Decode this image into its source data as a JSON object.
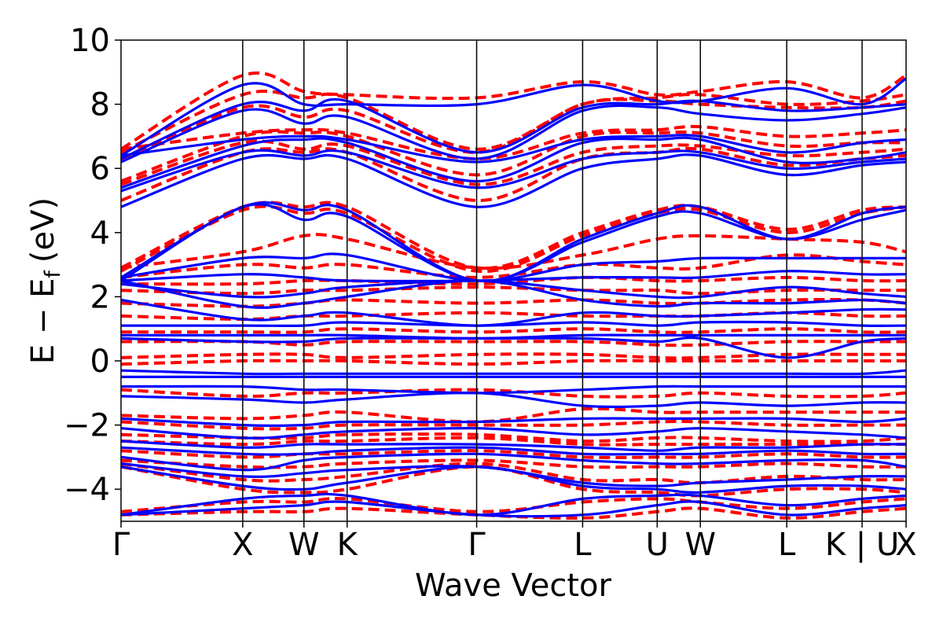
{
  "chart_data": {
    "type": "line",
    "title": "",
    "xlabel": "Wave Vector",
    "ylabel": "E − E",
    "ylabel_subscript": "f",
    "ylabel_unit": "(eV)",
    "ylim": [
      -5,
      10
    ],
    "xlim": [
      0,
      1
    ],
    "yticks": [
      10,
      8,
      6,
      4,
      2,
      0,
      -2,
      -4
    ],
    "ytick_labels": [
      "10",
      "8",
      "6",
      "4",
      "2",
      "0",
      "−2",
      "−4"
    ],
    "kpoints": [
      {
        "label": "Γ",
        "x": 0.0
      },
      {
        "label": "X",
        "x": 0.155
      },
      {
        "label": "W",
        "x": 0.233
      },
      {
        "label": "K",
        "x": 0.288
      },
      {
        "label": "Γ",
        "x": 0.453
      },
      {
        "label": "L",
        "x": 0.588
      },
      {
        "label": "U",
        "x": 0.683
      },
      {
        "label": "W",
        "x": 0.738
      },
      {
        "label": "L",
        "x": 0.848
      },
      {
        "label": "K | U",
        "x": 0.944
      },
      {
        "label": "X",
        "x": 1.0
      }
    ],
    "grid": false,
    "legend": "none",
    "series_styles": [
      {
        "color": "#0000ff",
        "style": "solid"
      },
      {
        "color": "#ff0000",
        "style": "dashed"
      }
    ],
    "bands": {
      "blue_solid": [
        [
          6.4,
          8.6,
          8.0,
          8.0,
          8.0,
          8.6,
          8.1,
          8.1,
          8.5,
          8.0,
          8.8
        ],
        [
          6.3,
          8.0,
          7.8,
          8.1,
          6.5,
          7.9,
          8.0,
          8.1,
          7.8,
          7.9,
          8.0
        ],
        [
          6.2,
          7.8,
          7.4,
          7.6,
          6.3,
          7.8,
          7.9,
          7.7,
          7.5,
          7.7,
          7.9
        ],
        [
          6.4,
          6.9,
          7.0,
          6.9,
          6.2,
          6.9,
          7.0,
          7.0,
          6.5,
          6.8,
          6.9
        ],
        [
          5.4,
          6.7,
          6.9,
          6.8,
          5.6,
          6.8,
          6.9,
          6.9,
          6.2,
          6.3,
          6.5
        ],
        [
          5.3,
          6.5,
          6.4,
          6.5,
          5.4,
          6.3,
          6.5,
          6.5,
          6.0,
          6.2,
          6.3
        ],
        [
          4.8,
          6.3,
          6.3,
          6.3,
          4.8,
          6.0,
          6.3,
          6.4,
          5.8,
          6.1,
          6.2
        ],
        [
          2.6,
          4.8,
          4.7,
          4.7,
          2.5,
          3.8,
          4.6,
          4.8,
          3.8,
          4.6,
          4.8
        ],
        [
          2.5,
          4.8,
          4.4,
          4.5,
          2.5,
          3.7,
          4.5,
          4.6,
          3.8,
          4.4,
          4.7
        ],
        [
          2.6,
          3.2,
          3.2,
          3.3,
          2.5,
          3.0,
          3.1,
          3.2,
          3.2,
          3.2,
          3.2
        ],
        [
          2.5,
          2.7,
          2.6,
          2.5,
          2.5,
          2.6,
          2.6,
          2.6,
          2.8,
          2.7,
          2.7
        ],
        [
          2.4,
          2.0,
          2.1,
          2.3,
          2.5,
          2.2,
          2.0,
          2.0,
          2.3,
          2.1,
          2.0
        ],
        [
          2.5,
          1.7,
          1.8,
          2.0,
          2.5,
          1.9,
          1.7,
          1.8,
          1.8,
          1.9,
          1.8
        ],
        [
          1.9,
          1.3,
          1.4,
          1.5,
          1.1,
          1.5,
          1.4,
          1.4,
          1.5,
          1.6,
          1.6
        ],
        [
          1.1,
          1.1,
          1.1,
          1.2,
          1.1,
          1.2,
          1.1,
          1.2,
          1.2,
          1.1,
          1.1
        ],
        [
          0.8,
          0.8,
          0.8,
          0.8,
          0.7,
          0.8,
          0.8,
          0.8,
          0.8,
          0.8,
          0.8
        ],
        [
          0.7,
          0.6,
          0.6,
          0.7,
          0.7,
          0.7,
          0.6,
          0.7,
          0.1,
          0.6,
          0.7
        ],
        [
          -0.3,
          -0.4,
          -0.4,
          -0.4,
          -0.4,
          -0.4,
          -0.4,
          -0.4,
          -0.4,
          -0.4,
          -0.3
        ],
        [
          -0.5,
          -0.5,
          -0.5,
          -0.5,
          -0.5,
          -0.5,
          -0.5,
          -0.5,
          -0.5,
          -0.5,
          -0.5
        ],
        [
          -0.8,
          -0.8,
          -0.9,
          -0.9,
          -1.0,
          -0.9,
          -0.8,
          -0.8,
          -0.8,
          -0.8,
          -0.8
        ],
        [
          -1.1,
          -1.2,
          -1.3,
          -1.2,
          -1.0,
          -1.4,
          -1.4,
          -1.3,
          -1.4,
          -1.3,
          -1.3
        ],
        [
          -1.8,
          -2.0,
          -2.0,
          -1.9,
          -1.9,
          -1.8,
          -1.8,
          -1.8,
          -1.8,
          -1.9,
          -1.8
        ],
        [
          -2.1,
          -2.4,
          -2.3,
          -2.2,
          -2.1,
          -2.3,
          -2.2,
          -2.1,
          -2.2,
          -2.3,
          -2.4
        ],
        [
          -2.5,
          -2.7,
          -2.6,
          -2.6,
          -2.6,
          -2.7,
          -2.8,
          -2.7,
          -2.7,
          -2.6,
          -2.6
        ],
        [
          -2.7,
          -2.9,
          -2.9,
          -2.8,
          -2.7,
          -2.9,
          -2.9,
          -2.9,
          -2.8,
          -2.9,
          -2.9
        ],
        [
          -3.0,
          -3.4,
          -3.1,
          -3.0,
          -2.9,
          -3.1,
          -3.2,
          -3.2,
          -3.1,
          -3.1,
          -3.3
        ],
        [
          -3.2,
          -3.6,
          -3.5,
          -3.4,
          -3.3,
          -3.8,
          -3.9,
          -3.8,
          -3.7,
          -3.6,
          -3.6
        ],
        [
          -3.3,
          -3.9,
          -4.0,
          -3.8,
          -3.3,
          -3.9,
          -4.0,
          -4.1,
          -3.9,
          -3.9,
          -4.0
        ],
        [
          -4.8,
          -4.3,
          -4.2,
          -4.2,
          -4.8,
          -4.3,
          -4.2,
          -4.2,
          -4.5,
          -4.3,
          -4.2
        ],
        [
          -4.8,
          -4.6,
          -4.5,
          -4.4,
          -4.8,
          -4.8,
          -4.5,
          -4.4,
          -4.8,
          -4.6,
          -4.5
        ]
      ],
      "red_dashed": [
        [
          6.6,
          8.9,
          8.4,
          8.3,
          8.2,
          8.7,
          8.3,
          8.4,
          8.7,
          8.2,
          8.9
        ],
        [
          6.5,
          8.3,
          8.2,
          8.2,
          6.6,
          8.0,
          8.2,
          8.3,
          8.0,
          8.1,
          8.3
        ],
        [
          6.3,
          7.9,
          7.6,
          7.8,
          6.5,
          8.0,
          8.1,
          8.0,
          7.9,
          7.9,
          8.1
        ],
        [
          6.6,
          7.1,
          7.2,
          7.1,
          6.3,
          7.1,
          7.2,
          7.3,
          7.0,
          7.1,
          7.2
        ],
        [
          5.6,
          7.0,
          7.1,
          7.0,
          5.8,
          7.0,
          7.1,
          7.1,
          6.7,
          6.8,
          6.8
        ],
        [
          5.5,
          6.8,
          6.6,
          6.7,
          5.5,
          6.5,
          6.7,
          6.7,
          6.4,
          6.5,
          6.6
        ],
        [
          5.0,
          6.5,
          6.5,
          6.5,
          5.0,
          6.3,
          6.5,
          6.6,
          6.1,
          6.3,
          6.4
        ],
        [
          2.9,
          4.8,
          4.8,
          4.8,
          2.9,
          4.0,
          4.7,
          4.8,
          4.1,
          4.7,
          4.8
        ],
        [
          2.8,
          4.7,
          4.6,
          4.6,
          2.8,
          3.9,
          4.6,
          4.7,
          4.0,
          4.6,
          4.8
        ],
        [
          2.9,
          3.4,
          3.9,
          3.8,
          2.9,
          3.3,
          3.8,
          3.9,
          3.8,
          3.7,
          3.4
        ],
        [
          2.6,
          3.0,
          2.9,
          3.0,
          2.6,
          3.0,
          2.9,
          2.9,
          3.3,
          3.1,
          3.0
        ],
        [
          2.4,
          2.4,
          2.5,
          2.5,
          2.4,
          2.6,
          2.5,
          2.5,
          2.6,
          2.5,
          2.5
        ],
        [
          2.2,
          2.1,
          2.2,
          2.2,
          2.3,
          2.2,
          2.2,
          2.1,
          2.2,
          2.2,
          2.2
        ],
        [
          1.8,
          1.7,
          1.8,
          1.9,
          1.8,
          1.9,
          1.8,
          1.8,
          1.9,
          1.9,
          1.8
        ],
        [
          1.4,
          1.3,
          1.4,
          1.4,
          1.5,
          1.4,
          1.4,
          1.4,
          1.5,
          1.4,
          1.4
        ],
        [
          0.9,
          0.9,
          0.9,
          1.0,
          0.9,
          1.0,
          0.9,
          0.9,
          1.0,
          0.9,
          0.9
        ],
        [
          0.6,
          0.6,
          0.5,
          0.6,
          0.6,
          0.6,
          0.5,
          0.5,
          0.6,
          0.6,
          0.6
        ],
        [
          0.1,
          0.2,
          0.2,
          0.1,
          0.2,
          0.2,
          0.1,
          0.1,
          0.2,
          0.2,
          0.2
        ],
        [
          -0.1,
          0.0,
          0.0,
          0.0,
          -0.1,
          0.0,
          0.0,
          0.0,
          0.0,
          0.0,
          0.0
        ],
        [
          -0.9,
          -1.1,
          -1.0,
          -1.0,
          -0.9,
          -1.1,
          -1.1,
          -1.0,
          -1.1,
          -1.1,
          -1.0
        ],
        [
          -1.7,
          -1.8,
          -1.7,
          -1.6,
          -1.9,
          -1.5,
          -1.6,
          -1.6,
          -1.6,
          -1.6,
          -1.6
        ],
        [
          -1.9,
          -2.1,
          -2.1,
          -2.0,
          -2.0,
          -2.0,
          -1.9,
          -1.9,
          -2.0,
          -2.0,
          -2.0
        ],
        [
          -2.3,
          -2.4,
          -2.4,
          -2.3,
          -2.3,
          -2.5,
          -2.4,
          -2.4,
          -2.5,
          -2.5,
          -2.4
        ],
        [
          -2.5,
          -2.6,
          -2.5,
          -2.5,
          -2.4,
          -2.6,
          -2.6,
          -2.6,
          -2.6,
          -2.6,
          -2.6
        ],
        [
          -2.8,
          -3.0,
          -2.9,
          -2.9,
          -2.8,
          -3.0,
          -3.0,
          -3.0,
          -2.9,
          -3.0,
          -3.0
        ],
        [
          -3.1,
          -3.3,
          -3.3,
          -3.2,
          -3.1,
          -3.3,
          -3.3,
          -3.3,
          -3.2,
          -3.3,
          -3.3
        ],
        [
          -3.2,
          -3.7,
          -3.7,
          -3.6,
          -3.2,
          -3.7,
          -3.7,
          -3.8,
          -3.6,
          -3.7,
          -3.7
        ],
        [
          -3.3,
          -4.0,
          -4.1,
          -4.0,
          -3.3,
          -4.0,
          -4.1,
          -4.2,
          -4.0,
          -4.0,
          -4.1
        ],
        [
          -4.7,
          -4.4,
          -4.4,
          -4.3,
          -4.7,
          -4.4,
          -4.3,
          -4.4,
          -4.6,
          -4.4,
          -4.3
        ],
        [
          -4.8,
          -4.7,
          -4.7,
          -4.6,
          -4.8,
          -4.9,
          -4.7,
          -4.6,
          -4.9,
          -4.7,
          -4.6
        ]
      ]
    }
  }
}
